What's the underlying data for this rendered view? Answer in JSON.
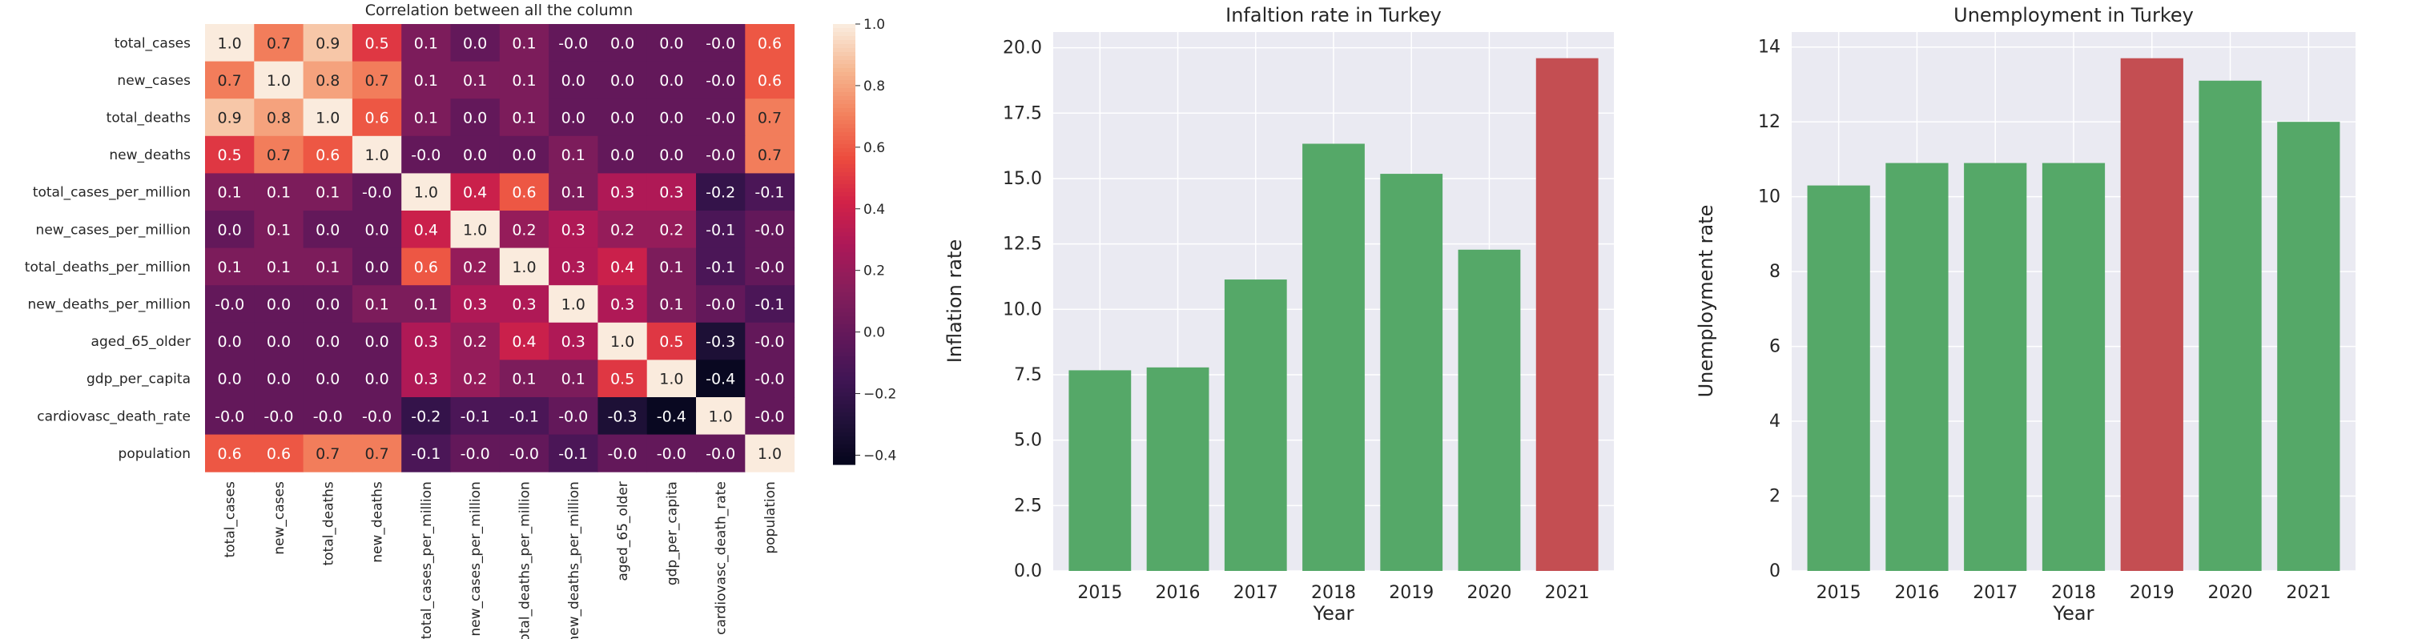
{
  "chart_data": [
    {
      "type": "heatmap",
      "title": "Correlation between all the column",
      "rows": [
        "total_cases",
        "new_cases",
        "total_deaths",
        "new_deaths",
        "total_cases_per_million",
        "new_cases_per_million",
        "total_deaths_per_million",
        "new_deaths_per_million",
        "aged_65_older",
        "gdp_per_capita",
        "cardiovasc_death_rate",
        "population"
      ],
      "columns": [
        "total_cases",
        "new_cases",
        "total_deaths",
        "new_deaths",
        "total_cases_per_million",
        "new_cases_per_million",
        "total_deaths_per_million",
        "new_deaths_per_million",
        "aged_65_older",
        "gdp_per_capita",
        "cardiovasc_death_rate",
        "population"
      ],
      "values": [
        [
          1.0,
          0.7,
          0.9,
          0.5,
          0.1,
          0.0,
          0.1,
          -0.0,
          0.0,
          0.0,
          -0.0,
          0.6
        ],
        [
          0.7,
          1.0,
          0.8,
          0.7,
          0.1,
          0.1,
          0.1,
          0.0,
          0.0,
          0.0,
          -0.0,
          0.6
        ],
        [
          0.9,
          0.8,
          1.0,
          0.6,
          0.1,
          0.0,
          0.1,
          0.0,
          0.0,
          0.0,
          -0.0,
          0.7
        ],
        [
          0.5,
          0.7,
          0.6,
          1.0,
          -0.0,
          0.0,
          0.0,
          0.1,
          0.0,
          0.0,
          -0.0,
          0.7
        ],
        [
          0.1,
          0.1,
          0.1,
          -0.0,
          1.0,
          0.4,
          0.6,
          0.1,
          0.3,
          0.3,
          -0.2,
          -0.1
        ],
        [
          0.0,
          0.1,
          0.0,
          0.0,
          0.4,
          1.0,
          0.2,
          0.3,
          0.2,
          0.2,
          -0.1,
          -0.0
        ],
        [
          0.1,
          0.1,
          0.1,
          0.0,
          0.6,
          0.2,
          1.0,
          0.3,
          0.4,
          0.1,
          -0.1,
          -0.0
        ],
        [
          -0.0,
          0.0,
          0.0,
          0.1,
          0.1,
          0.3,
          0.3,
          1.0,
          0.3,
          0.1,
          -0.0,
          -0.1
        ],
        [
          0.0,
          0.0,
          0.0,
          0.0,
          0.3,
          0.2,
          0.4,
          0.3,
          1.0,
          0.5,
          -0.3,
          -0.0
        ],
        [
          0.0,
          0.0,
          0.0,
          0.0,
          0.3,
          0.2,
          0.1,
          0.1,
          0.5,
          1.0,
          -0.4,
          -0.0
        ],
        [
          -0.0,
          -0.0,
          -0.0,
          -0.0,
          -0.2,
          -0.1,
          -0.1,
          -0.0,
          -0.3,
          -0.4,
          1.0,
          -0.0
        ],
        [
          0.6,
          0.6,
          0.7,
          0.7,
          -0.1,
          -0.0,
          -0.0,
          -0.1,
          -0.0,
          -0.0,
          -0.0,
          1.0
        ]
      ],
      "colorbar": {
        "range": [
          -0.43,
          1.0
        ],
        "ticks": [
          "1.0",
          "0.8",
          "0.6",
          "0.4",
          "0.2",
          "0.0",
          "−0.2",
          "−0.4"
        ],
        "tick_values": [
          1.0,
          0.8,
          0.6,
          0.4,
          0.2,
          0.0,
          -0.2,
          -0.4
        ]
      },
      "colormap": "rocket"
    },
    {
      "type": "bar",
      "title": "Infaltion rate in Turkey",
      "xlabel": "Year",
      "ylabel": "Inflation rate",
      "categories": [
        "2015",
        "2016",
        "2017",
        "2018",
        "2019",
        "2020",
        "2021"
      ],
      "values": [
        7.67,
        7.78,
        11.14,
        16.33,
        15.18,
        12.28,
        19.6
      ],
      "highlight_index": 6,
      "ylim": [
        0,
        20.6
      ],
      "yticks": [
        "0.0",
        "2.5",
        "5.0",
        "7.5",
        "10.0",
        "12.5",
        "15.0",
        "17.5",
        "20.0"
      ],
      "ytick_values": [
        0,
        2.5,
        5.0,
        7.5,
        10.0,
        12.5,
        15.0,
        17.5,
        20.0
      ],
      "grid": true,
      "colors": {
        "bar": "#55a868",
        "highlight": "#c44e52",
        "background": "#eaeaf2"
      }
    },
    {
      "type": "bar",
      "title": "Unemployment in Turkey",
      "xlabel": "Year",
      "ylabel": "Unemployment rate",
      "categories": [
        "2015",
        "2016",
        "2017",
        "2018",
        "2019",
        "2020",
        "2021"
      ],
      "values": [
        10.3,
        10.9,
        10.9,
        10.9,
        13.7,
        13.1,
        12.0
      ],
      "highlight_index": 4,
      "ylim": [
        0,
        14.4
      ],
      "yticks": [
        "0",
        "2",
        "4",
        "6",
        "8",
        "10",
        "12",
        "14"
      ],
      "ytick_values": [
        0,
        2,
        4,
        6,
        8,
        10,
        12,
        14
      ],
      "grid": true,
      "colors": {
        "bar": "#55a868",
        "highlight": "#c44e52",
        "background": "#eaeaf2"
      }
    }
  ]
}
